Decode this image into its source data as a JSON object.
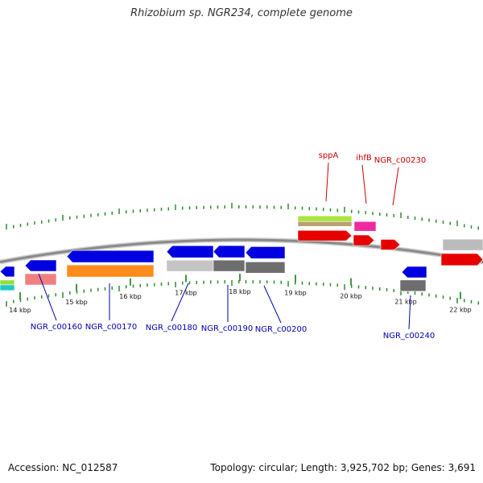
{
  "title": "Rhizobium sp. NGR234, complete genome",
  "accession": "Accession: NC_012587",
  "summary": "Topology: circular; Length: 3,925,702 bp; Genes: 3,691",
  "colors": {
    "axis": "#8a8a8a",
    "tick": "#2e8b2e",
    "forward_label": "#cc0000",
    "reverse_label": "#0000aa"
  },
  "ticks": [
    "14 kbp",
    "15 kbp",
    "16 kbp",
    "17 kbp",
    "18 kbp",
    "19 kbp",
    "20 kbp",
    "21 kbp",
    "22 kbp"
  ],
  "forward_genes": [
    {
      "label": "sppA"
    },
    {
      "label": "ihfB"
    },
    {
      "label": "NGR_c00230"
    }
  ],
  "reverse_genes": [
    {
      "label": "NGR_c00160"
    },
    {
      "label": "NGR_c00170"
    },
    {
      "label": "NGR_c00180"
    },
    {
      "label": "NGR_c00190"
    },
    {
      "label": "NGR_c00200"
    },
    {
      "label": "NGR_c00240"
    }
  ]
}
